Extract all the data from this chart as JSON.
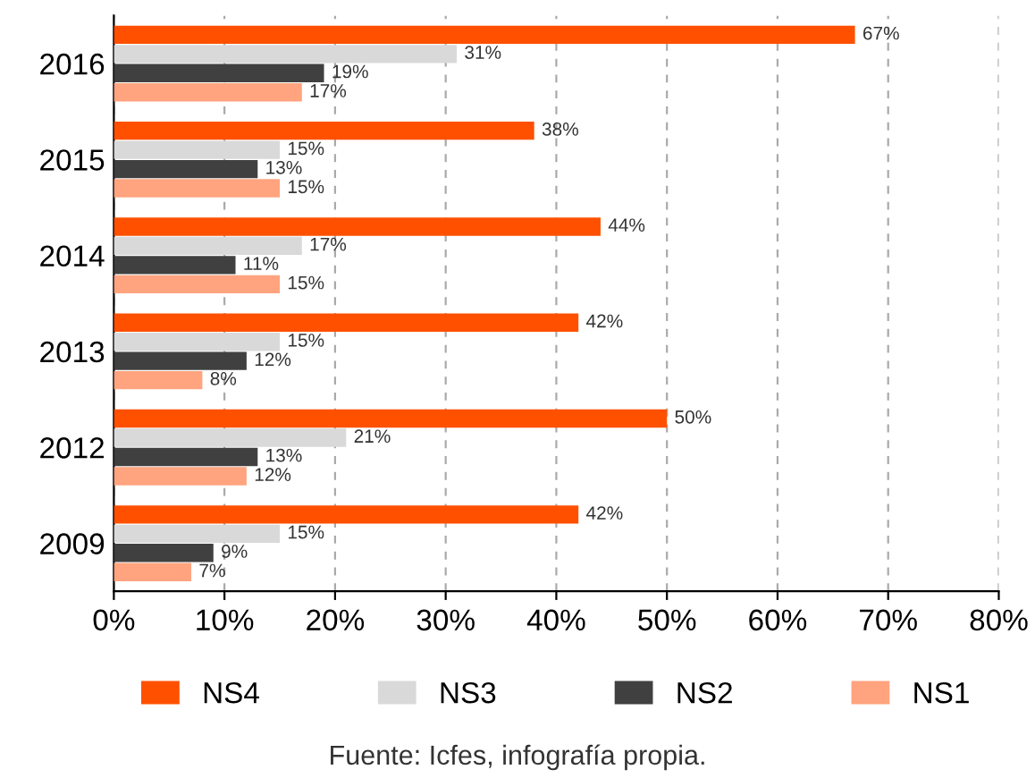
{
  "chart_data": {
    "type": "bar",
    "orientation": "horizontal",
    "categories": [
      "2016",
      "2015",
      "2014",
      "2013",
      "2012",
      "2009"
    ],
    "series": [
      {
        "name": "NS4",
        "color": "#ff5000",
        "values": [
          67,
          38,
          44,
          42,
          50,
          42
        ],
        "value_labels": [
          "67%",
          "38%",
          "44%",
          "42%",
          "50%",
          "42%"
        ]
      },
      {
        "name": "NS3",
        "color": "#d9d9d9",
        "values": [
          31,
          15,
          17,
          15,
          21,
          15
        ],
        "value_labels": [
          "31%",
          "15%",
          "17%",
          "15%",
          "21%",
          "15%"
        ]
      },
      {
        "name": "NS2",
        "color": "#404040",
        "values": [
          19,
          13,
          11,
          12,
          13,
          9
        ],
        "value_labels": [
          "19%",
          "13%",
          "11%",
          "12%",
          "13%",
          "9%"
        ]
      },
      {
        "name": "NS1",
        "color": "#ffa47f",
        "values": [
          17,
          15,
          15,
          8,
          12,
          7
        ],
        "value_labels": [
          "17%",
          "15%",
          "15%",
          "8%",
          "12%",
          "7%"
        ]
      }
    ],
    "xlim": [
      0,
      80
    ],
    "xticks": [
      {
        "value": 0,
        "label": "0%"
      },
      {
        "value": 10,
        "label": "10%"
      },
      {
        "value": 20,
        "label": "20%"
      },
      {
        "value": 30,
        "label": "30%"
      },
      {
        "value": 40,
        "label": "40%"
      },
      {
        "value": 50,
        "label": "50%"
      },
      {
        "value": 60,
        "label": "60%"
      },
      {
        "value": 70,
        "label": "70%"
      },
      {
        "value": 80,
        "label": "80%"
      }
    ],
    "grid": "x",
    "legend": "bottom",
    "annotations": [
      "Fuente: Icfes, infografía propia."
    ]
  }
}
